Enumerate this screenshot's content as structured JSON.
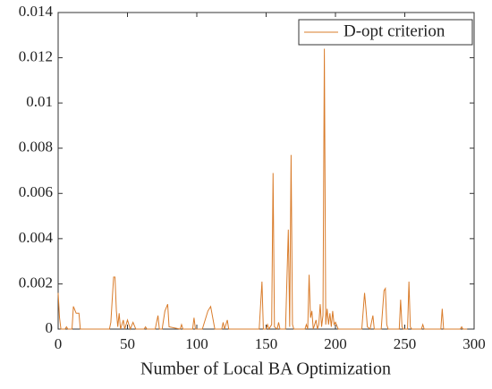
{
  "chart_data": {
    "type": "line",
    "xlabel": "Number of Local BA Optimization",
    "x": [
      0,
      1,
      2,
      5,
      6,
      7,
      10,
      11,
      13,
      15,
      16,
      37,
      38,
      40,
      41,
      42,
      43,
      44,
      45,
      47,
      48,
      50,
      52,
      54,
      56,
      62,
      63,
      64,
      70,
      72,
      73,
      75,
      77,
      79,
      80,
      88,
      89,
      90,
      97,
      98,
      99,
      104,
      108,
      110,
      113,
      118,
      119,
      120,
      122,
      123,
      145,
      147,
      148,
      150,
      151,
      152,
      154,
      155,
      156,
      158,
      159,
      160,
      164,
      166,
      167,
      168,
      169,
      170,
      178,
      179,
      180,
      181,
      182,
      183,
      184,
      186,
      187,
      188,
      189,
      190,
      191,
      192,
      193,
      194,
      195,
      196,
      197,
      198,
      199,
      200,
      202,
      219,
      221,
      222,
      223,
      225,
      227,
      228,
      233,
      235,
      236,
      237,
      238,
      246,
      247,
      248,
      249,
      252,
      253,
      254,
      255,
      262,
      263,
      264,
      276,
      277,
      278,
      290,
      291,
      292,
      295
    ],
    "series": [
      {
        "name": "D-opt criterion",
        "color": "#d97c2b",
        "values": [
          0.0016,
          0.0005,
          0,
          0,
          0.0001,
          0,
          0,
          0.001,
          0.0007,
          0.0007,
          0,
          0,
          0.0003,
          0.0023,
          0.0023,
          0.0008,
          0.0001,
          0.0007,
          0,
          0.0004,
          0,
          0.0004,
          0,
          0.0003,
          0,
          0,
          0.0001,
          0,
          0,
          0.0006,
          0,
          0,
          0.0008,
          0.0011,
          0.0001,
          0,
          0.0002,
          0,
          0,
          0.0005,
          0,
          0,
          0.0008,
          0.001,
          0,
          0,
          0.0003,
          0,
          0.0004,
          0,
          0,
          0.0021,
          0,
          0,
          0.0002,
          0,
          0.0002,
          0.0069,
          0.0001,
          0,
          0.0003,
          0,
          0,
          0.0044,
          0.0001,
          0.0077,
          0.0002,
          0,
          0,
          0.0002,
          0,
          0.0024,
          0.0005,
          0.0008,
          0,
          0.0004,
          0,
          0.0002,
          0.0011,
          0.0001,
          0.0006,
          0.0124,
          0.0002,
          0.0009,
          0.0002,
          0.0007,
          0.0001,
          0.0008,
          0.0002,
          0.0003,
          0,
          0,
          0.0016,
          0.0009,
          0.0001,
          0,
          0.0006,
          0,
          0,
          0.0017,
          0.0018,
          0.0002,
          0,
          0,
          0.0013,
          0.0001,
          0,
          0,
          0.0021,
          0.0001,
          0,
          0,
          0.0002,
          0,
          0,
          0.0009,
          0,
          0,
          0.0001,
          0,
          0
        ]
      }
    ],
    "xlim": [
      0,
      300
    ],
    "xticks": [
      0,
      50,
      100,
      150,
      200,
      250,
      300
    ],
    "ylim": [
      0,
      0.014
    ],
    "yticks": [
      0,
      0.002,
      0.004,
      0.006,
      0.008,
      0.01,
      0.012,
      0.014
    ],
    "grid": false,
    "legend": "northeast"
  }
}
